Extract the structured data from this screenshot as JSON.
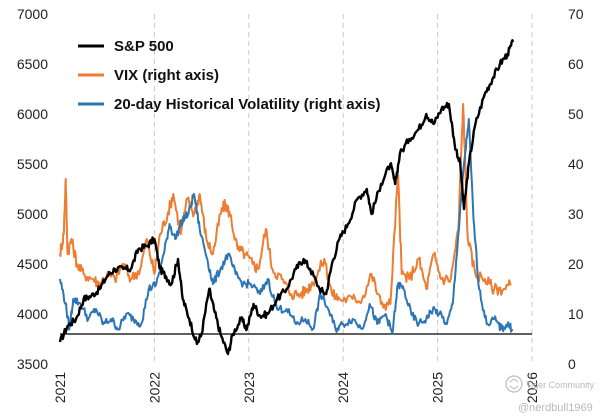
{
  "chart_data": {
    "type": "line",
    "left_axis": {
      "min": 3500,
      "max": 7000,
      "step": 500,
      "ticks": [
        "3500",
        "4000",
        "4500",
        "5000",
        "5500",
        "6000",
        "6500",
        "7000"
      ]
    },
    "right_axis": {
      "min": 0,
      "max": 70,
      "step": 10,
      "ticks": [
        "0",
        "10",
        "20",
        "30",
        "40",
        "50",
        "60",
        "70"
      ]
    },
    "x_axis": {
      "min": 2021.0,
      "max": 2026.0,
      "ticks": [
        "2021",
        "2022",
        "2023",
        "2024",
        "2025",
        "2026"
      ],
      "tick_values": [
        2021,
        2022,
        2023,
        2024,
        2025,
        2026
      ],
      "label_rotation": -90
    },
    "gridlines": "vertical dashed at year boundaries",
    "reference_line": {
      "axis": "left",
      "value": 3800
    },
    "legend_position": "top-left",
    "series": [
      {
        "name": "S&P 500",
        "axis": "left",
        "color": "#000000",
        "points": [
          [
            2021.0,
            3720
          ],
          [
            2021.08,
            3880
          ],
          [
            2021.17,
            3950
          ],
          [
            2021.25,
            4150
          ],
          [
            2021.33,
            4180
          ],
          [
            2021.42,
            4250
          ],
          [
            2021.5,
            4380
          ],
          [
            2021.58,
            4450
          ],
          [
            2021.67,
            4450
          ],
          [
            2021.75,
            4450
          ],
          [
            2021.83,
            4650
          ],
          [
            2021.92,
            4680
          ],
          [
            2022.0,
            4750
          ],
          [
            2022.06,
            4450
          ],
          [
            2022.12,
            4380
          ],
          [
            2022.18,
            4300
          ],
          [
            2022.25,
            4550
          ],
          [
            2022.3,
            4150
          ],
          [
            2022.37,
            3950
          ],
          [
            2022.45,
            3700
          ],
          [
            2022.5,
            3800
          ],
          [
            2022.58,
            4250
          ],
          [
            2022.63,
            4050
          ],
          [
            2022.7,
            3800
          ],
          [
            2022.78,
            3600
          ],
          [
            2022.83,
            3800
          ],
          [
            2022.92,
            3950
          ],
          [
            2022.98,
            3850
          ],
          [
            2023.05,
            4100
          ],
          [
            2023.12,
            3980
          ],
          [
            2023.2,
            4000
          ],
          [
            2023.3,
            4150
          ],
          [
            2023.4,
            4250
          ],
          [
            2023.5,
            4450
          ],
          [
            2023.58,
            4550
          ],
          [
            2023.65,
            4450
          ],
          [
            2023.75,
            4250
          ],
          [
            2023.82,
            4200
          ],
          [
            2023.88,
            4500
          ],
          [
            2023.96,
            4750
          ],
          [
            2024.05,
            4900
          ],
          [
            2024.15,
            5150
          ],
          [
            2024.25,
            5250
          ],
          [
            2024.3,
            5000
          ],
          [
            2024.4,
            5300
          ],
          [
            2024.5,
            5500
          ],
          [
            2024.55,
            5300
          ],
          [
            2024.6,
            5600
          ],
          [
            2024.7,
            5750
          ],
          [
            2024.8,
            5850
          ],
          [
            2024.88,
            6000
          ],
          [
            2024.96,
            5900
          ],
          [
            2025.04,
            6050
          ],
          [
            2025.12,
            6100
          ],
          [
            2025.18,
            5700
          ],
          [
            2025.24,
            5500
          ],
          [
            2025.28,
            5050
          ],
          [
            2025.33,
            5500
          ],
          [
            2025.4,
            5900
          ],
          [
            2025.5,
            6200
          ],
          [
            2025.58,
            6350
          ],
          [
            2025.66,
            6500
          ],
          [
            2025.74,
            6600
          ],
          [
            2025.8,
            6720
          ]
        ]
      },
      {
        "name": "VIX (right axis)",
        "axis": "right",
        "color": "#ED7D31",
        "points": [
          [
            2021.0,
            22
          ],
          [
            2021.04,
            26
          ],
          [
            2021.06,
            37
          ],
          [
            2021.08,
            22
          ],
          [
            2021.12,
            25
          ],
          [
            2021.18,
            20
          ],
          [
            2021.25,
            18
          ],
          [
            2021.35,
            17
          ],
          [
            2021.42,
            16
          ],
          [
            2021.5,
            18
          ],
          [
            2021.58,
            17
          ],
          [
            2021.67,
            20
          ],
          [
            2021.75,
            17
          ],
          [
            2021.85,
            19
          ],
          [
            2021.92,
            25
          ],
          [
            2022.0,
            18
          ],
          [
            2022.06,
            26
          ],
          [
            2022.14,
            30
          ],
          [
            2022.2,
            34
          ],
          [
            2022.28,
            26
          ],
          [
            2022.35,
            33
          ],
          [
            2022.42,
            30
          ],
          [
            2022.48,
            34
          ],
          [
            2022.55,
            25
          ],
          [
            2022.62,
            22
          ],
          [
            2022.7,
            30
          ],
          [
            2022.75,
            32
          ],
          [
            2022.8,
            30
          ],
          [
            2022.88,
            23
          ],
          [
            2022.96,
            22
          ],
          [
            2023.04,
            20
          ],
          [
            2023.1,
            19
          ],
          [
            2023.18,
            27
          ],
          [
            2023.25,
            19
          ],
          [
            2023.35,
            17
          ],
          [
            2023.45,
            14
          ],
          [
            2023.55,
            14
          ],
          [
            2023.62,
            15
          ],
          [
            2023.7,
            17
          ],
          [
            2023.8,
            21
          ],
          [
            2023.88,
            14
          ],
          [
            2023.96,
            13
          ],
          [
            2024.1,
            13
          ],
          [
            2024.2,
            13
          ],
          [
            2024.3,
            18
          ],
          [
            2024.4,
            12
          ],
          [
            2024.5,
            12
          ],
          [
            2024.58,
            38
          ],
          [
            2024.62,
            18
          ],
          [
            2024.7,
            17
          ],
          [
            2024.8,
            21
          ],
          [
            2024.88,
            15
          ],
          [
            2024.96,
            22
          ],
          [
            2025.04,
            17
          ],
          [
            2025.14,
            17
          ],
          [
            2025.22,
            27
          ],
          [
            2025.27,
            52
          ],
          [
            2025.32,
            25
          ],
          [
            2025.4,
            18
          ],
          [
            2025.5,
            17
          ],
          [
            2025.6,
            15
          ],
          [
            2025.7,
            15
          ],
          [
            2025.78,
            16
          ]
        ]
      },
      {
        "name": "20-day Historical Volatility (right axis)",
        "axis": "right",
        "color": "#2E75B6",
        "points": [
          [
            2021.0,
            17
          ],
          [
            2021.06,
            12
          ],
          [
            2021.1,
            7
          ],
          [
            2021.14,
            13
          ],
          [
            2021.22,
            12
          ],
          [
            2021.3,
            9
          ],
          [
            2021.38,
            11
          ],
          [
            2021.46,
            8
          ],
          [
            2021.54,
            9
          ],
          [
            2021.62,
            7
          ],
          [
            2021.7,
            10
          ],
          [
            2021.78,
            9
          ],
          [
            2021.86,
            8
          ],
          [
            2021.94,
            15
          ],
          [
            2022.02,
            16
          ],
          [
            2022.1,
            22
          ],
          [
            2022.16,
            28
          ],
          [
            2022.22,
            25
          ],
          [
            2022.3,
            29
          ],
          [
            2022.36,
            30
          ],
          [
            2022.42,
            34
          ],
          [
            2022.48,
            27
          ],
          [
            2022.56,
            21
          ],
          [
            2022.62,
            16
          ],
          [
            2022.7,
            19
          ],
          [
            2022.78,
            22
          ],
          [
            2022.86,
            18
          ],
          [
            2022.94,
            16
          ],
          [
            2023.02,
            16
          ],
          [
            2023.12,
            14
          ],
          [
            2023.2,
            17
          ],
          [
            2023.3,
            11
          ],
          [
            2023.4,
            11
          ],
          [
            2023.5,
            8
          ],
          [
            2023.6,
            9
          ],
          [
            2023.68,
            7
          ],
          [
            2023.76,
            14
          ],
          [
            2023.84,
            11
          ],
          [
            2023.92,
            7
          ],
          [
            2024.0,
            8
          ],
          [
            2024.1,
            9
          ],
          [
            2024.2,
            7
          ],
          [
            2024.28,
            12
          ],
          [
            2024.36,
            8
          ],
          [
            2024.45,
            10
          ],
          [
            2024.52,
            6
          ],
          [
            2024.58,
            16
          ],
          [
            2024.64,
            15
          ],
          [
            2024.72,
            10
          ],
          [
            2024.8,
            8
          ],
          [
            2024.88,
            9
          ],
          [
            2024.95,
            11
          ],
          [
            2025.02,
            10
          ],
          [
            2025.1,
            8
          ],
          [
            2025.16,
            12
          ],
          [
            2025.22,
            26
          ],
          [
            2025.28,
            40
          ],
          [
            2025.33,
            49
          ],
          [
            2025.38,
            29
          ],
          [
            2025.44,
            15
          ],
          [
            2025.52,
            8
          ],
          [
            2025.6,
            9
          ],
          [
            2025.68,
            7
          ],
          [
            2025.74,
            8
          ],
          [
            2025.79,
            7
          ]
        ]
      }
    ]
  },
  "watermark": {
    "line1": "Tiger Community",
    "line2": "@nerdbull1969"
  }
}
